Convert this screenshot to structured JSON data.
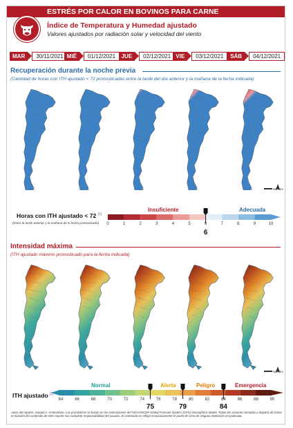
{
  "header": {
    "banner_title": "ESTRÉS POR CALOR EN BOVINOS PARA CARNE",
    "subtitle": "Índice de Temperatura y Humedad ajustado",
    "subsubtitle": "Valores ajustados por radiación solar y velocidad del viento"
  },
  "days": [
    {
      "name": "MAR",
      "date": "30/11/2021"
    },
    {
      "name": "MIÉ",
      "date": "01/12/2021"
    },
    {
      "name": "JUE",
      "date": "02/12/2021"
    },
    {
      "name": "VIE",
      "date": "03/12/2021"
    },
    {
      "name": "SÁB",
      "date": "04/12/2021"
    }
  ],
  "section1": {
    "title": "Recuperación durante la noche previa",
    "note": "(Cantidad de horas con ITH ajustado < 72 pronosticadas entre la tarde del día anterior y la mañana de la fecha indicada)"
  },
  "legend1": {
    "label": "Horas con ITH ajustado < 72",
    "footnote_mark": "[1]",
    "sublabel": "(Entre la tarde anterior y la mañana de la fecha pronosticada)",
    "cat_insufficient": "Insuficiente",
    "cat_adequate": "Adecuada",
    "ticks": [
      "0",
      "1",
      "2",
      "3",
      "4",
      "5",
      "6",
      "7",
      "8",
      "9",
      "10"
    ],
    "marker": "6",
    "marker_value": 6
  },
  "section2": {
    "title": "Intensidad máxima",
    "note": "(ITH ajustado máximo pronosticado para la fecha indicada)"
  },
  "legend2": {
    "label": "ITH ajustado",
    "footnote_mark": "[2]",
    "cat_normal": "Normal",
    "cat_alert": "Alerta",
    "cat_danger": "Peligro",
    "cat_emergency": "Emergencia",
    "ticks": [
      "64",
      "66",
      "68",
      "70",
      "72",
      "74",
      "76",
      "78",
      "80",
      "82",
      "84",
      "86",
      "88",
      "90"
    ],
    "markers": [
      "75",
      "79",
      "84"
    ],
    "marker_values": [
      75,
      79,
      84
    ]
  },
  "scale_label": "500 km",
  "footer": "Autor del reporte: Joaquín I. Armendano. Los pronósticos se basan en las estimaciones del NOAA/NCEP Global Forecast System (GFS) Atmospheric Model. Todas las acciones tomadas o dejadas de tomar en función del contenido de este reporte son completa responsabilidad del usuario. El contenido no refleja necesariamente el punto de vista de ninguna institución en particular.",
  "colors": {
    "brand": "#b21e28",
    "section_blue": "#2b6ca8",
    "map_blue": "#3f82c4"
  },
  "icons": [
    "cow-icon",
    "north-arrow-icon"
  ]
}
